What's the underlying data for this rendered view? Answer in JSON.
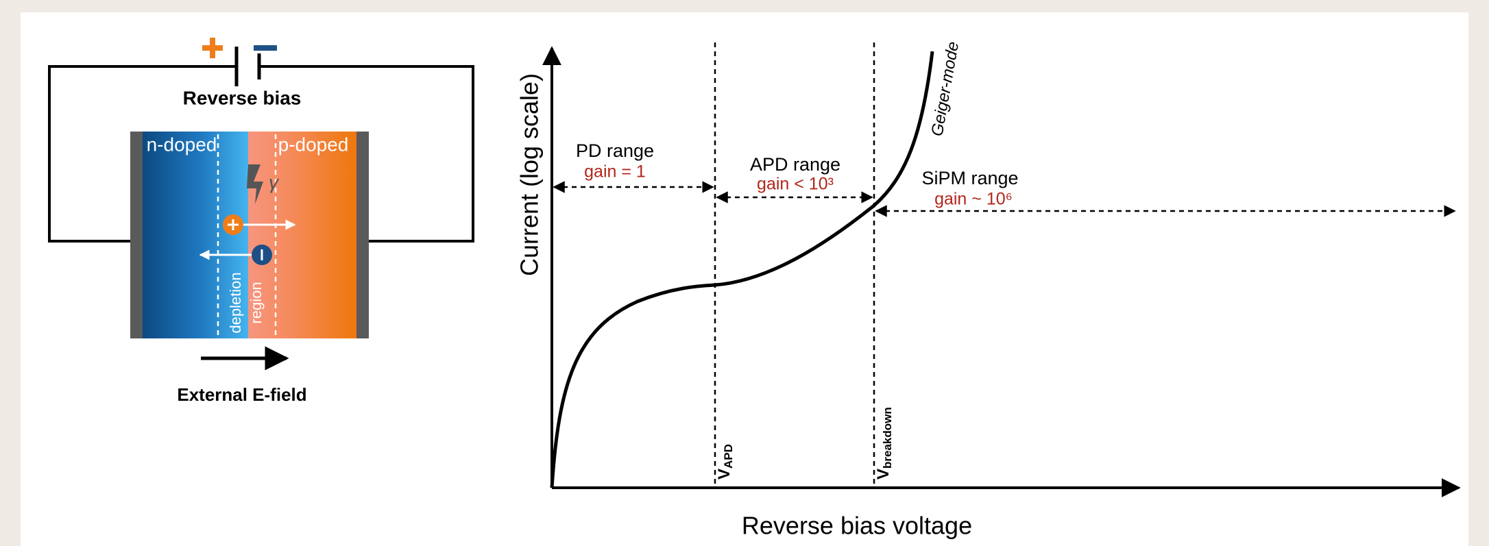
{
  "circuit": {
    "label": "Reverse bias",
    "field_label": "External E-field"
  },
  "device": {
    "n_label": "n-doped",
    "p_label": "p-doped",
    "photon": "γ",
    "depletion": [
      "depletion",
      "region"
    ]
  },
  "plot": {
    "y_axis_title": "Current (log scale)",
    "x_axis_title": "Reverse bias voltage",
    "curve_label": "Geiger-mode",
    "markers": [
      {
        "main": "V",
        "sub": "APD"
      },
      {
        "main": "V",
        "sub": "breakdown"
      }
    ],
    "ranges": [
      {
        "name": "PD range",
        "gain": "gain = 1"
      },
      {
        "name": "APD range",
        "gain": "gain < 10³"
      },
      {
        "name": "SiPM range",
        "gain": "gain ~ 10⁶"
      }
    ]
  }
}
